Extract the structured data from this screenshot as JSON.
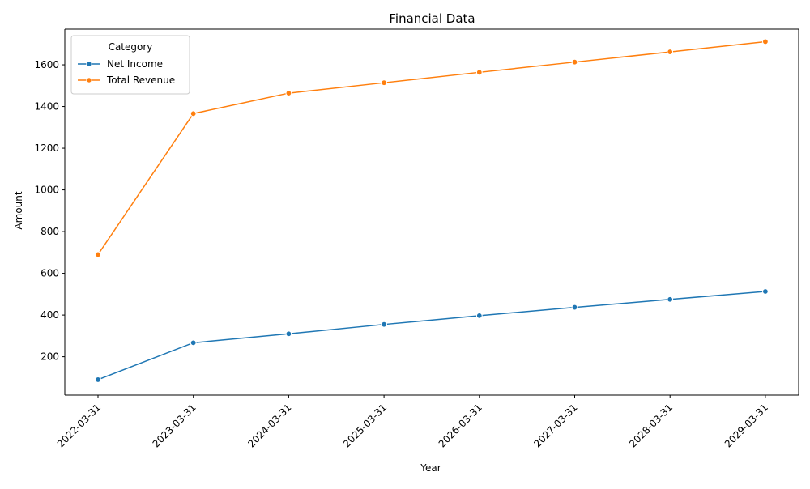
{
  "chart_data": {
    "type": "line",
    "title": "Financial Data",
    "xlabel": "Year",
    "ylabel": "Amount",
    "x": [
      "2022-03-31",
      "2023-03-31",
      "2024-03-31",
      "2025-03-31",
      "2026-03-31",
      "2027-03-31",
      "2028-03-31",
      "2029-03-31"
    ],
    "y_ticks": [
      200,
      400,
      600,
      800,
      1000,
      1200,
      1400,
      1600
    ],
    "ylim": [
      16,
      1771
    ],
    "grid": false,
    "legend": {
      "title": "Category",
      "placement": "top-left"
    },
    "series": [
      {
        "name": "Net Income",
        "color": "#1f77b4",
        "marker": "circle",
        "values": [
          90,
          267,
          310,
          355,
          397,
          437,
          475,
          513
        ]
      },
      {
        "name": "Total Revenue",
        "color": "#ff7f0e",
        "marker": "circle",
        "values": [
          690,
          1366,
          1464,
          1514,
          1564,
          1613,
          1662,
          1711
        ]
      }
    ]
  }
}
